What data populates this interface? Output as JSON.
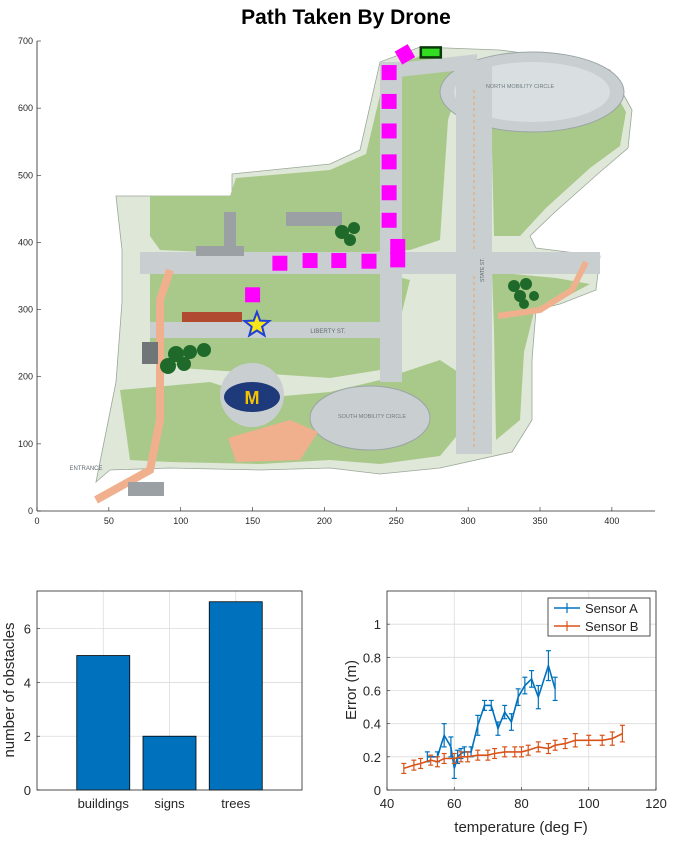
{
  "colors": {
    "bar": "#0072bd",
    "sensor_a": "#0072bd",
    "sensor_b": "#d95319",
    "drone_path": "#ff00ff",
    "start_star": "#1f3fd6",
    "map_grass": "#a9c98a",
    "map_road": "#c9cfd1",
    "map_walk": "#f0b08e"
  },
  "chart_data": [
    {
      "id": "map",
      "type": "scatter",
      "title": "Path Taken By Drone",
      "xlabel": "",
      "ylabel": "",
      "xlim": [
        0,
        430
      ],
      "ylim": [
        0,
        700
      ],
      "xticks": [
        0,
        50,
        100,
        150,
        200,
        250,
        300,
        350,
        400
      ],
      "yticks": [
        0,
        100,
        200,
        300,
        400,
        500,
        600,
        700
      ],
      "grid": false,
      "background": "campus-map",
      "map_labels": [
        "NORTH MOBILITY CIRCLE",
        "SOUTH MOBILITY CIRCLE",
        "LIBERTY ST.",
        "ENTRANCE",
        "STATE ST."
      ],
      "series": [
        {
          "marker": "square",
          "x": [
            150,
            169,
            190,
            210,
            231,
            251,
            251,
            245,
            245,
            245,
            245,
            245,
            245,
            256
          ],
          "y": [
            322,
            369,
            373,
            373,
            372,
            374,
            394,
            433,
            474,
            520,
            566,
            610,
            653,
            680
          ]
        }
      ],
      "start": {
        "marker": "star",
        "x": 153,
        "y": 277
      },
      "goal": {
        "marker": "rectangle",
        "x": 274,
        "y": 683
      }
    },
    {
      "id": "obstacles",
      "type": "bar",
      "title": "",
      "xlabel": "",
      "ylabel": "number of obstacles",
      "categories": [
        "buildings",
        "signs",
        "trees"
      ],
      "values": [
        5,
        2,
        7
      ],
      "ylim": [
        0,
        7.4
      ],
      "yticks": [
        0,
        2,
        4,
        6
      ],
      "grid": true
    },
    {
      "id": "sensor_error",
      "type": "line",
      "title": "",
      "xlabel": "temperature (deg F)",
      "ylabel": "Error (m)",
      "xlim": [
        40,
        120
      ],
      "ylim": [
        0,
        1.2
      ],
      "xticks": [
        40,
        60,
        80,
        100,
        120
      ],
      "yticks": [
        0,
        0.2,
        0.4,
        0.6,
        0.8,
        1
      ],
      "grid": true,
      "legend": "top-right",
      "series": [
        {
          "name": "Sensor A",
          "x": [
            52,
            55,
            57,
            59,
            60,
            61,
            62,
            63,
            65,
            67,
            69,
            71,
            73,
            75,
            77,
            79,
            81,
            83,
            85,
            88,
            90
          ],
          "y": [
            0.2,
            0.2,
            0.33,
            0.26,
            0.13,
            0.2,
            0.22,
            0.23,
            0.23,
            0.39,
            0.51,
            0.51,
            0.37,
            0.47,
            0.41,
            0.56,
            0.63,
            0.67,
            0.56,
            0.75,
            0.61
          ],
          "err": [
            0.03,
            0.03,
            0.07,
            0.06,
            0.06,
            0.04,
            0.03,
            0.03,
            0.03,
            0.06,
            0.03,
            0.03,
            0.04,
            0.04,
            0.05,
            0.05,
            0.05,
            0.05,
            0.07,
            0.09,
            0.07
          ]
        },
        {
          "name": "Sensor B",
          "x": [
            45,
            48,
            50,
            53,
            55,
            57,
            60,
            62,
            64,
            67,
            70,
            72,
            75,
            78,
            80,
            82,
            85,
            88,
            90,
            93,
            96,
            100,
            104,
            107,
            110
          ],
          "y": [
            0.13,
            0.15,
            0.16,
            0.18,
            0.17,
            0.19,
            0.19,
            0.2,
            0.2,
            0.21,
            0.21,
            0.22,
            0.23,
            0.23,
            0.23,
            0.24,
            0.26,
            0.25,
            0.27,
            0.28,
            0.3,
            0.3,
            0.3,
            0.31,
            0.34
          ],
          "err": [
            0.03,
            0.03,
            0.03,
            0.03,
            0.03,
            0.03,
            0.03,
            0.03,
            0.03,
            0.03,
            0.03,
            0.03,
            0.03,
            0.03,
            0.03,
            0.03,
            0.03,
            0.03,
            0.03,
            0.03,
            0.04,
            0.03,
            0.03,
            0.04,
            0.05
          ]
        }
      ]
    }
  ]
}
